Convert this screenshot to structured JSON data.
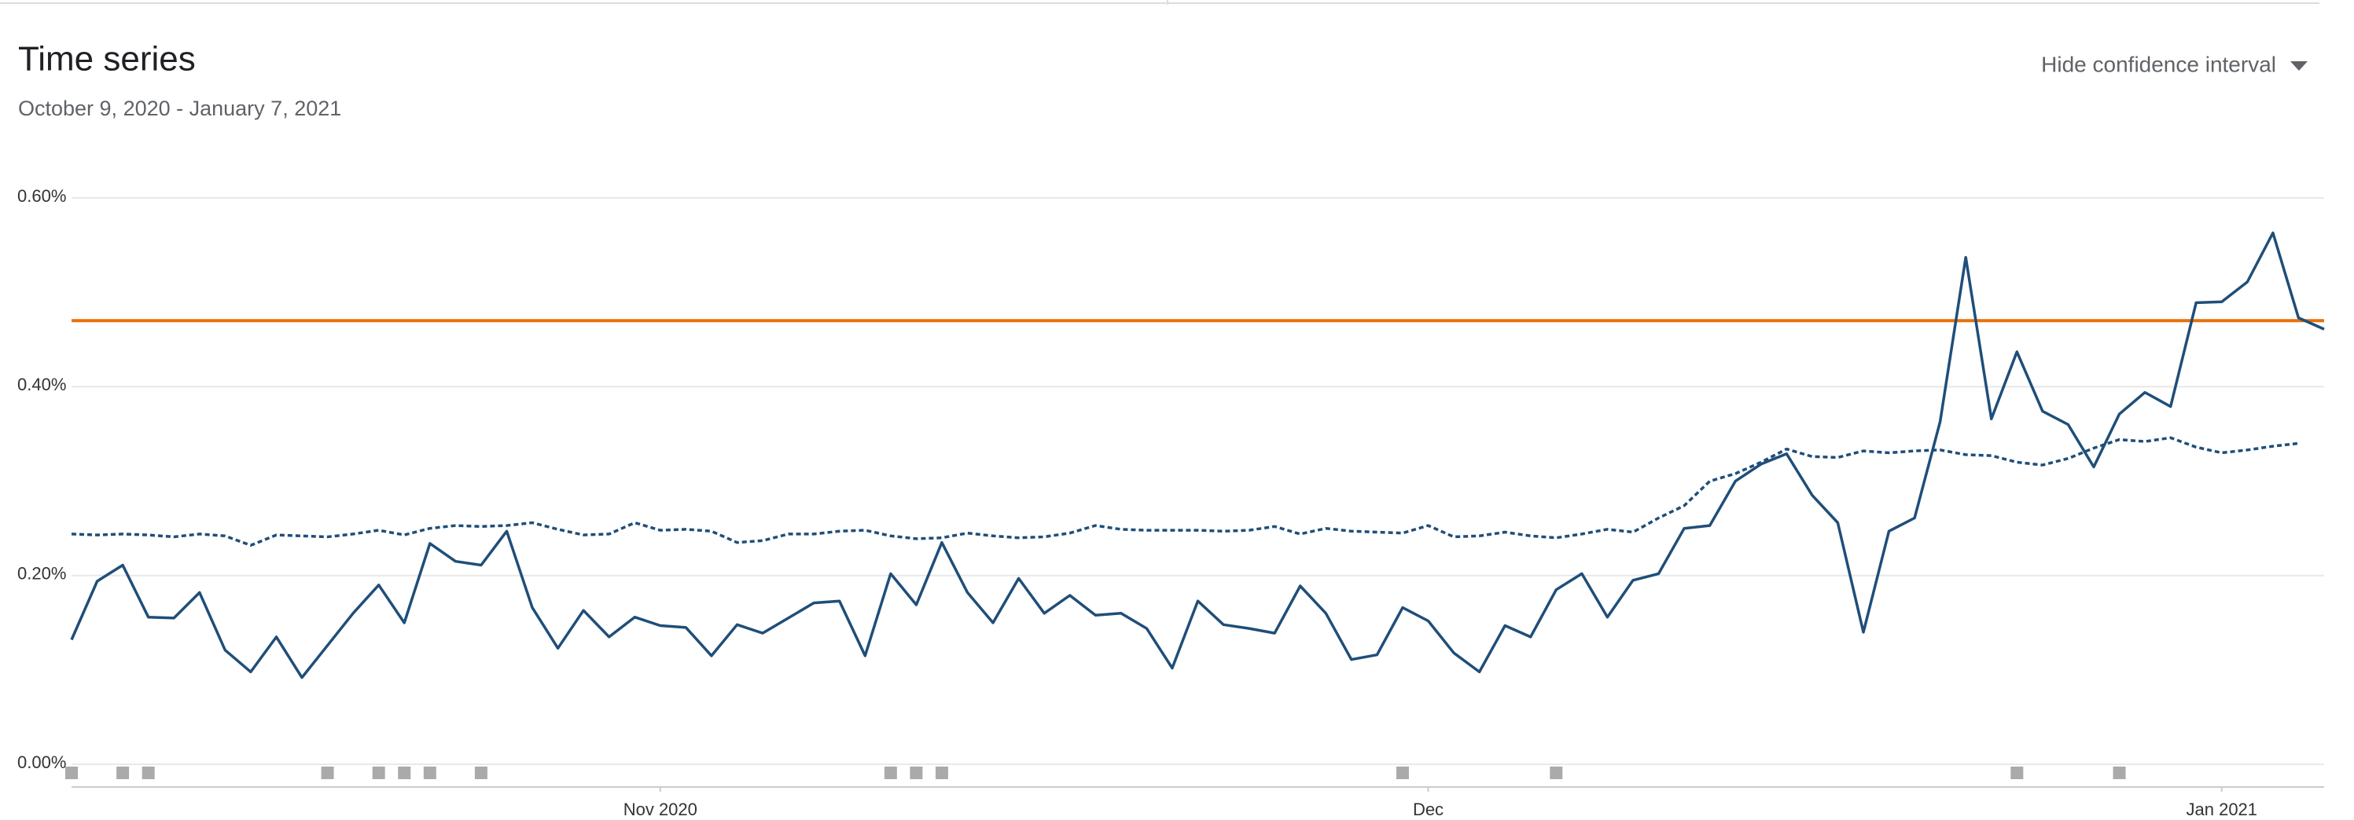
{
  "chart_data": {
    "type": "line",
    "title": "Time series",
    "subtitle": "October 9, 2020 - January 7, 2021",
    "control_label": "Hide confidence interval",
    "x": [
      "2020-10-09",
      "2020-10-10",
      "2020-10-11",
      "2020-10-12",
      "2020-10-13",
      "2020-10-14",
      "2020-10-15",
      "2020-10-16",
      "2020-10-17",
      "2020-10-18",
      "2020-10-19",
      "2020-10-20",
      "2020-10-21",
      "2020-10-22",
      "2020-10-23",
      "2020-10-24",
      "2020-10-25",
      "2020-10-26",
      "2020-10-27",
      "2020-10-28",
      "2020-10-29",
      "2020-10-30",
      "2020-10-31",
      "2020-11-01",
      "2020-11-02",
      "2020-11-03",
      "2020-11-04",
      "2020-11-05",
      "2020-11-06",
      "2020-11-07",
      "2020-11-08",
      "2020-11-09",
      "2020-11-10",
      "2020-11-11",
      "2020-11-12",
      "2020-11-13",
      "2020-11-14",
      "2020-11-15",
      "2020-11-16",
      "2020-11-17",
      "2020-11-18",
      "2020-11-19",
      "2020-11-20",
      "2020-11-21",
      "2020-11-22",
      "2020-11-23",
      "2020-11-24",
      "2020-11-25",
      "2020-11-26",
      "2020-11-27",
      "2020-11-28",
      "2020-11-29",
      "2020-11-30",
      "2020-12-01",
      "2020-12-02",
      "2020-12-03",
      "2020-12-04",
      "2020-12-05",
      "2020-12-06",
      "2020-12-07",
      "2020-12-08",
      "2020-12-09",
      "2020-12-10",
      "2020-12-11",
      "2020-12-12",
      "2020-12-13",
      "2020-12-14",
      "2020-12-15",
      "2020-12-16",
      "2020-12-17",
      "2020-12-18",
      "2020-12-19",
      "2020-12-20",
      "2020-12-21",
      "2020-12-22",
      "2020-12-23",
      "2020-12-24",
      "2020-12-25",
      "2020-12-26",
      "2020-12-27",
      "2020-12-28",
      "2020-12-29",
      "2020-12-30",
      "2020-12-31",
      "2021-01-01",
      "2021-01-02",
      "2021-01-03",
      "2021-01-04",
      "2021-01-05"
    ],
    "series": [
      {
        "color": "#1f4e79",
        "style": "solid",
        "values": [
          0.132,
          0.194,
          0.211,
          0.156,
          0.155,
          0.182,
          0.121,
          0.098,
          0.135,
          0.092,
          0.126,
          0.16,
          0.19,
          0.15,
          0.234,
          0.215,
          0.211,
          0.247,
          0.166,
          0.123,
          0.163,
          0.135,
          0.156,
          0.147,
          0.145,
          0.115,
          0.148,
          0.139,
          0.155,
          0.171,
          0.173,
          0.115,
          0.202,
          0.169,
          0.235,
          0.182,
          0.15,
          0.197,
          0.16,
          0.179,
          0.158,
          0.16,
          0.144,
          0.102,
          0.173,
          0.148,
          0.144,
          0.139,
          0.189,
          0.16,
          0.111,
          0.116,
          0.166,
          0.152,
          0.118,
          0.098,
          0.147,
          0.135,
          0.185,
          0.202,
          0.156,
          0.195,
          0.202,
          0.25,
          0.253,
          0.3,
          0.318,
          0.329,
          0.285,
          0.256,
          0.14,
          0.247,
          0.261,
          0.363,
          0.537,
          0.366,
          0.437,
          0.374,
          0.36,
          0.315,
          0.371,
          0.394,
          0.379,
          0.489,
          0.49,
          0.511,
          0.563,
          0.473,
          0.461
        ]
      },
      {
        "color": "#1f4e79",
        "style": "dotted",
        "values": [
          0.244,
          0.243,
          0.244,
          0.243,
          0.241,
          0.244,
          0.242,
          0.232,
          0.243,
          0.242,
          0.241,
          0.244,
          0.248,
          0.243,
          0.25,
          0.253,
          0.252,
          0.253,
          0.256,
          0.249,
          0.243,
          0.244,
          0.256,
          0.248,
          0.249,
          0.247,
          0.235,
          0.237,
          0.244,
          0.244,
          0.247,
          0.248,
          0.242,
          0.239,
          0.24,
          0.245,
          0.242,
          0.24,
          0.241,
          0.245,
          0.253,
          0.249,
          0.248,
          0.248,
          0.248,
          0.247,
          0.248,
          0.252,
          0.244,
          0.25,
          0.247,
          0.246,
          0.245,
          0.253,
          0.241,
          0.242,
          0.246,
          0.242,
          0.24,
          0.244,
          0.249,
          0.246,
          0.261,
          0.274,
          0.3,
          0.308,
          0.32,
          0.334,
          0.326,
          0.325,
          0.332,
          0.33,
          0.332,
          0.333,
          0.328,
          0.327,
          0.32,
          0.317,
          0.324,
          0.335,
          0.344,
          0.342,
          0.346,
          0.336,
          0.33,
          0.333,
          0.337,
          0.34,
          null
        ]
      }
    ],
    "reference_line": {
      "value": 0.47,
      "color": "#e8710a"
    },
    "events": [
      "2020-10-09",
      "2020-10-11",
      "2020-10-12",
      "2020-10-19",
      "2020-10-21",
      "2020-10-22",
      "2020-10-23",
      "2020-10-25",
      "2020-11-10",
      "2020-11-11",
      "2020-11-12",
      "2020-11-30",
      "2020-12-06",
      "2020-12-24",
      "2020-12-28"
    ],
    "event_color": "#aaaaaa",
    "xlim": [
      "2020-10-09",
      "2021-01-05"
    ],
    "xticks": [
      {
        "value": "2020-11-01",
        "label": "Nov 2020"
      },
      {
        "value": "2020-12-01",
        "label": "Dec"
      },
      {
        "value": "2021-01-01",
        "label": "Jan 2021"
      }
    ],
    "ylim": [
      -0.024,
      0.6
    ],
    "yticks": [
      {
        "value": 0,
        "label": "0.00%"
      },
      {
        "value": 0.2,
        "label": "0.20%"
      },
      {
        "value": 0.4,
        "label": "0.40%"
      },
      {
        "value": 0.6,
        "label": "0.60%"
      }
    ],
    "grid": true
  }
}
